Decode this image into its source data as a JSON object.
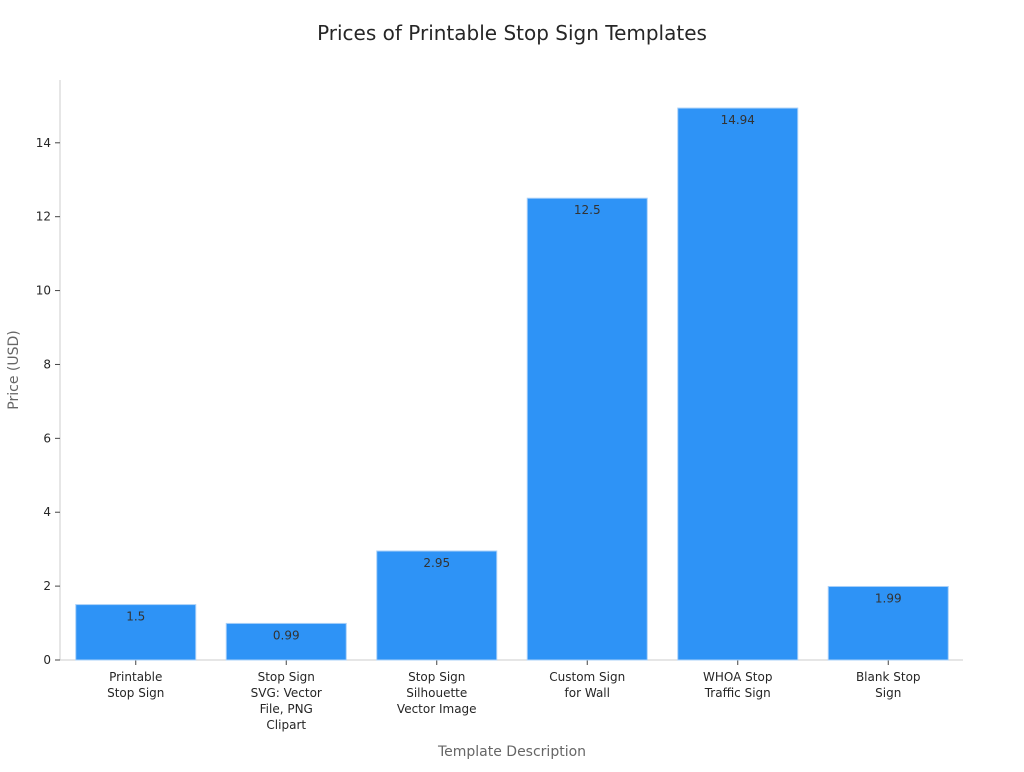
{
  "chart_data": {
    "type": "bar",
    "title": "Prices of Printable Stop Sign Templates",
    "xlabel": "Template Description",
    "ylabel": "Price (USD)",
    "categories": [
      [
        "Printable",
        "Stop Sign"
      ],
      [
        "Stop Sign",
        "SVG: Vector",
        "File, PNG",
        "Clipart"
      ],
      [
        "Stop Sign",
        "Silhouette",
        "Vector Image"
      ],
      [
        "Custom Sign",
        "for Wall"
      ],
      [
        "WHOA Stop",
        "Traffic Sign"
      ],
      [
        "Blank Stop",
        "Sign"
      ]
    ],
    "values": [
      1.5,
      0.99,
      2.95,
      12.5,
      14.94,
      1.99
    ],
    "data_labels": [
      "1.5",
      "0.99",
      "2.95",
      "12.5",
      "14.94",
      "1.99"
    ],
    "yticks": [
      0,
      2,
      4,
      6,
      8,
      10,
      12,
      14
    ],
    "ylim": [
      0,
      15.7
    ],
    "grid": false,
    "bar_color": "#2E93F6",
    "bar_edge_color": "#A9D0F8"
  }
}
